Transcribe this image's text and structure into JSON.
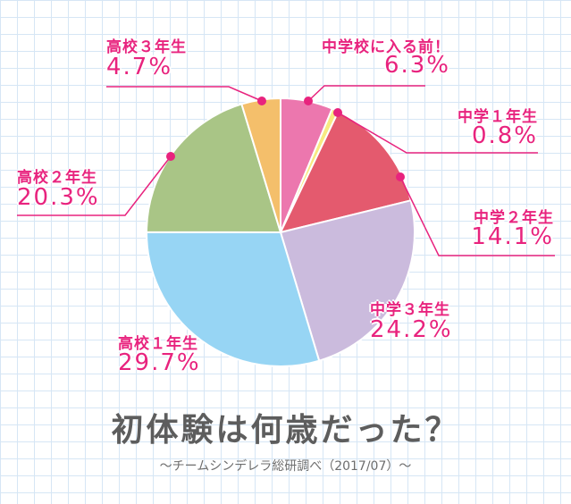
{
  "chart_data": {
    "type": "pie",
    "title": "初体験は何歳だった？",
    "subtitle": "～チームシンデレラ総研調べ（2017/07）～",
    "slices": [
      {
        "label": "中学校に入る前！",
        "value": 6.3,
        "display": "6.3%",
        "color": "#ec77ae"
      },
      {
        "label": "中学１年生",
        "value": 0.8,
        "display": "0.8%",
        "color": "#f7ea81"
      },
      {
        "label": "中学２年生",
        "value": 14.1,
        "display": "14.1%",
        "color": "#e45a6e"
      },
      {
        "label": "中学３年生",
        "value": 24.2,
        "display": "24.2%",
        "color": "#cbbbdd"
      },
      {
        "label": "高校１年生",
        "value": 29.7,
        "display": "29.7%",
        "color": "#97d5f4"
      },
      {
        "label": "高校２年生",
        "value": 20.3,
        "display": "20.3%",
        "color": "#a9c586"
      },
      {
        "label": "高校３年生",
        "value": 4.7,
        "display": "4.7%",
        "color": "#f4bf6b"
      }
    ],
    "label_color": "#e8237e",
    "title_color": "#5d5d5d"
  }
}
